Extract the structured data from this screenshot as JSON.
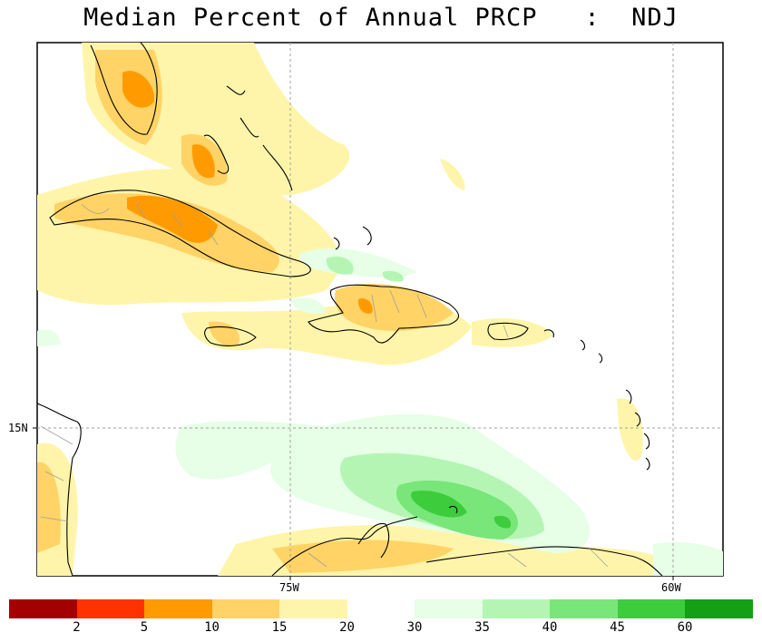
{
  "title": "Median Percent of Annual PRCP   :  NDJ",
  "axes": {
    "lon_labels": [
      "75W",
      "60W"
    ],
    "lat_labels": [
      "15N"
    ]
  },
  "legend": {
    "dry_colors": [
      "#a50000",
      "#ff3200",
      "#ff9b00",
      "#ffd366",
      "#fff5aa"
    ],
    "wet_colors": [
      "#e6ffe6",
      "#b4f5b4",
      "#78e678",
      "#3ccc3c",
      "#14a014"
    ],
    "labels": [
      "2",
      "5",
      "10",
      "15",
      "20",
      "30",
      "35",
      "40",
      "45",
      "60"
    ]
  },
  "colors": {
    "land_outline": "#000000",
    "admin_border": "#a0a0a0",
    "grid": "#a0a0a0"
  }
}
